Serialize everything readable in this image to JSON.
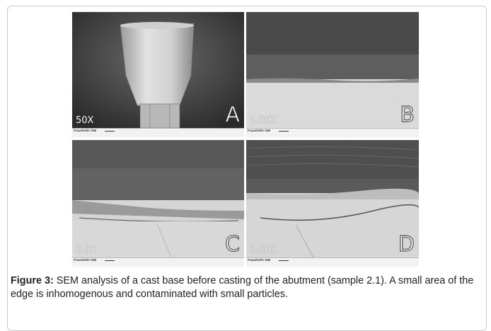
{
  "figure": {
    "panels": [
      {
        "letter": "A",
        "magnification": "50X"
      },
      {
        "letter": "B",
        "magnification": "1.0KX"
      },
      {
        "letter": "C",
        "magnification": "2.5X"
      },
      {
        "letter": "D",
        "magnification": "5.0KX"
      }
    ],
    "info_bar_brand": "Fraunhofer IGB"
  },
  "caption": {
    "label": "Figure 3:",
    "text": " SEM analysis of a cast base before casting of the abutment (sample 2.1). A small area of the edge is inhomogenous and contaminated with small particles."
  }
}
